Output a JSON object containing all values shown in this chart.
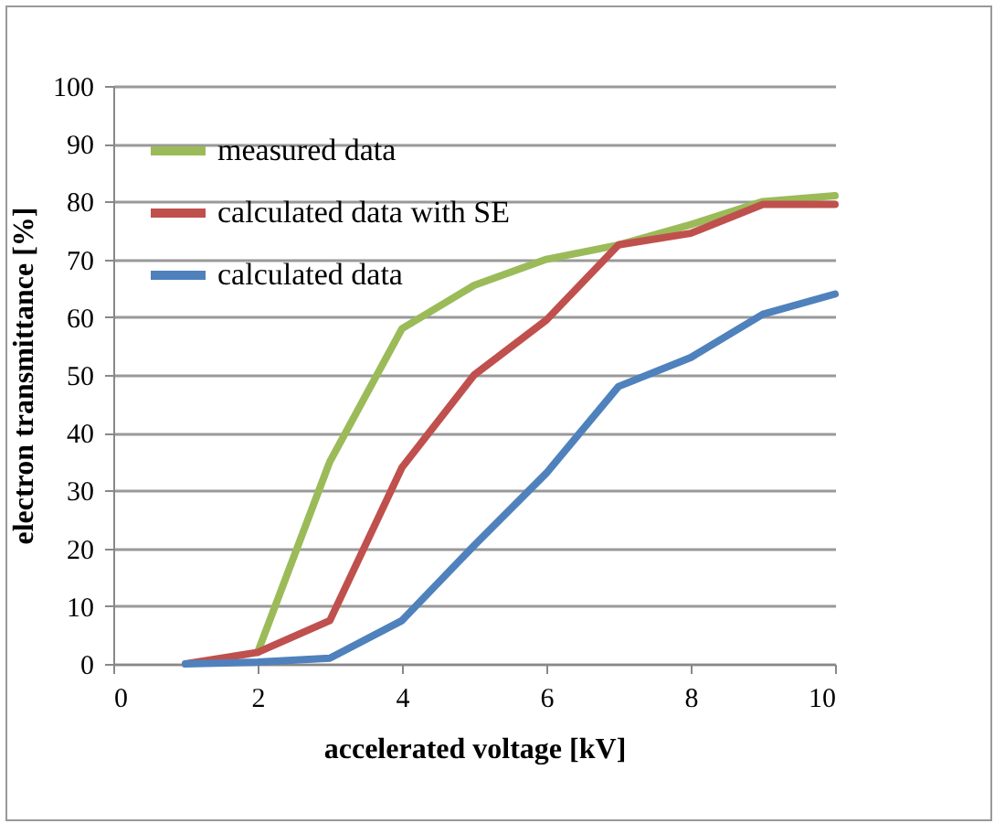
{
  "chart_data": {
    "type": "line",
    "xlabel": "accelerated voltage [kV]",
    "ylabel": "electron transmittance [%]",
    "x": [
      1,
      2,
      3,
      4,
      5,
      6,
      7,
      8,
      9,
      10
    ],
    "series": [
      {
        "name": "measured data",
        "color": "#9bbb59",
        "values": [
          null,
          2,
          35,
          58,
          65.5,
          70,
          72.5,
          76,
          80,
          81
        ]
      },
      {
        "name": "calculated data with SE",
        "color": "#c0504d",
        "values": [
          0,
          2,
          7.5,
          34,
          50,
          59.5,
          72.5,
          74.5,
          79.5,
          79.5
        ]
      },
      {
        "name": "calculated data",
        "color": "#4f81bd",
        "values": [
          0,
          0.3,
          1,
          7.5,
          20.5,
          33,
          48,
          53,
          60.5,
          64
        ]
      }
    ],
    "xlim": [
      0,
      10
    ],
    "xticks": [
      0,
      2,
      4,
      6,
      8,
      10
    ],
    "ylim": [
      0,
      100
    ],
    "yticks": [
      0,
      10,
      20,
      30,
      40,
      50,
      60,
      70,
      80,
      90,
      100
    ],
    "grid": "y",
    "legend": "top left",
    "marker": "none",
    "line_style": "solid"
  }
}
